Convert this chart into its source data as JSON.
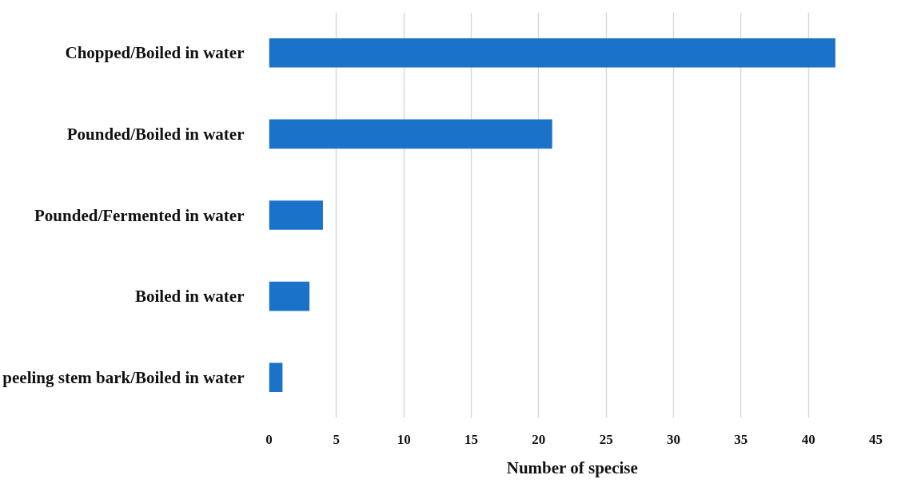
{
  "chart_data": {
    "type": "bar",
    "orientation": "horizontal",
    "xlabel": "Number of specise",
    "categories": [
      "Chopped/Boiled in water",
      "Pounded/Boiled in water",
      "Pounded/Fermented in water",
      "Boiled in water",
      "peeling stem bark/Boiled in water"
    ],
    "values": [
      42,
      21,
      4,
      3,
      1
    ],
    "color": "#1a73c8",
    "xlim": [
      0,
      45
    ],
    "xticks": [
      0,
      5,
      10,
      15,
      20,
      25,
      30,
      35,
      40,
      45
    ],
    "grid": "x"
  }
}
